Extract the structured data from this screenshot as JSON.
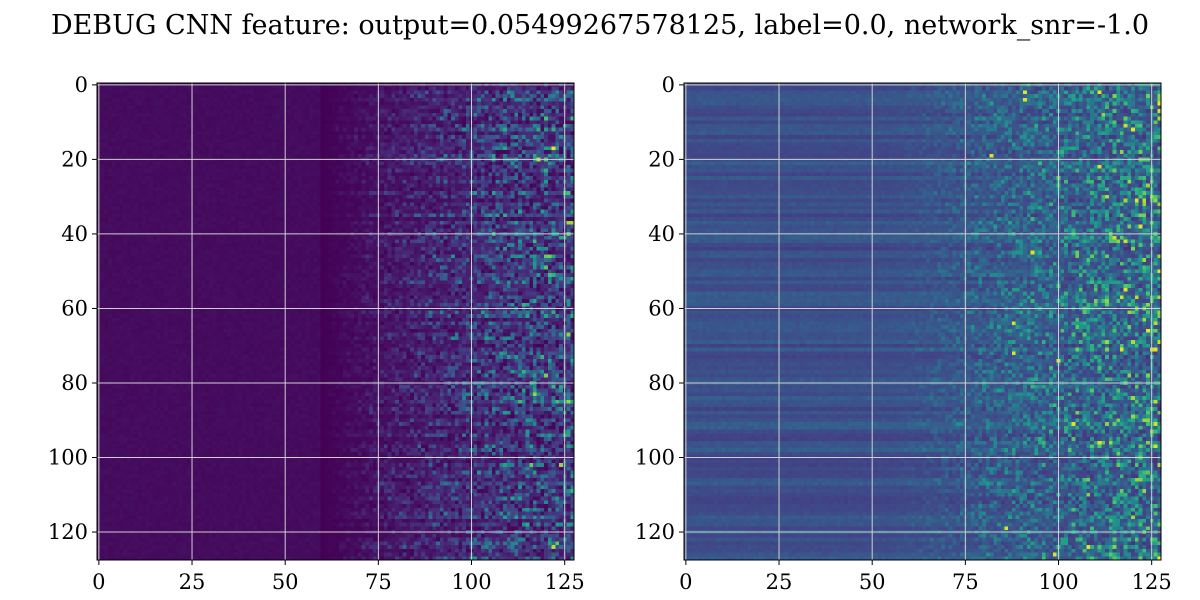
{
  "figure": {
    "title": "DEBUG CNN feature: output=0.05499267578125, label=0.0, network_snr=-1.0"
  },
  "chart_data": [
    {
      "type": "heatmap",
      "title": "",
      "xlabel": "",
      "ylabel": "",
      "shape": [
        128,
        128
      ],
      "colormap": "viridis",
      "value_range": [
        0,
        1
      ],
      "xlim": [
        -0.5,
        127.5
      ],
      "ylim": [
        127.5,
        -0.5
      ],
      "y_axis": "inverted",
      "grid": true,
      "xticks": [
        0,
        25,
        50,
        75,
        100,
        125
      ],
      "xtick_labels": [
        "0",
        "25",
        "50",
        "75",
        "100",
        "125"
      ],
      "yticks": [
        0,
        20,
        40,
        60,
        80,
        100,
        120
      ],
      "ytick_labels": [
        "0",
        "20",
        "40",
        "60",
        "80",
        "100",
        "120"
      ],
      "pattern": {
        "quiet_columns": [
          0,
          68
        ],
        "active_columns": [
          68,
          127
        ],
        "baseline_level": 0.0,
        "peak_level": 0.75
      }
    },
    {
      "type": "heatmap",
      "title": "",
      "xlabel": "",
      "ylabel": "",
      "shape": [
        128,
        128
      ],
      "colormap": "viridis",
      "value_range": [
        0,
        1
      ],
      "xlim": [
        -0.5,
        127.5
      ],
      "ylim": [
        127.5,
        -0.5
      ],
      "y_axis": "inverted",
      "grid": true,
      "xticks": [
        0,
        25,
        50,
        75,
        100,
        125
      ],
      "xtick_labels": [
        "0",
        "25",
        "50",
        "75",
        "100",
        "125"
      ],
      "yticks": [
        0,
        20,
        40,
        60,
        80,
        100,
        120
      ],
      "ytick_labels": [
        "0",
        "20",
        "40",
        "60",
        "80",
        "100",
        "120"
      ],
      "pattern": {
        "quiet_columns": [
          0,
          55
        ],
        "active_columns": [
          55,
          127
        ],
        "baseline_level": 0.22,
        "peak_level": 0.95
      }
    }
  ]
}
